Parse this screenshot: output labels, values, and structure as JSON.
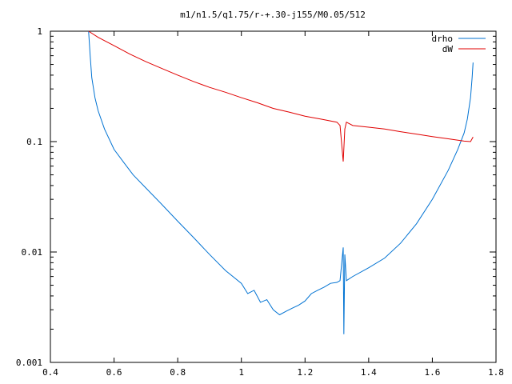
{
  "chart_data": {
    "type": "line",
    "title": "m1/n1.5/q1.75/r-+.30-j155/M0.05/512",
    "xlabel": "",
    "ylabel": "",
    "xlim": [
      0.4,
      1.8
    ],
    "ylim": [
      0.001,
      1
    ],
    "yscale": "log",
    "grid": false,
    "legend_position": "top-right",
    "x_ticks": [
      {
        "value": 0.4,
        "label": "0.4"
      },
      {
        "value": 0.6,
        "label": "0.6"
      },
      {
        "value": 0.8,
        "label": "0.8"
      },
      {
        "value": 1.0,
        "label": "1"
      },
      {
        "value": 1.2,
        "label": "1.2"
      },
      {
        "value": 1.4,
        "label": "1.4"
      },
      {
        "value": 1.6,
        "label": "1.6"
      },
      {
        "value": 1.8,
        "label": "1.8"
      }
    ],
    "y_ticks": [
      {
        "value": 1,
        "label": "1"
      },
      {
        "value": 0.1,
        "label": "0.1"
      },
      {
        "value": 0.01,
        "label": "0.01"
      },
      {
        "value": 0.001,
        "label": "0.001"
      }
    ],
    "series": [
      {
        "name": "drho",
        "color": "#0072d2",
        "points": [
          [
            0.52,
            1.0
          ],
          [
            0.525,
            0.6
          ],
          [
            0.53,
            0.38
          ],
          [
            0.54,
            0.25
          ],
          [
            0.55,
            0.19
          ],
          [
            0.57,
            0.13
          ],
          [
            0.6,
            0.085
          ],
          [
            0.63,
            0.065
          ],
          [
            0.66,
            0.05
          ],
          [
            0.7,
            0.038
          ],
          [
            0.75,
            0.027
          ],
          [
            0.8,
            0.019
          ],
          [
            0.85,
            0.0135
          ],
          [
            0.9,
            0.0095
          ],
          [
            0.95,
            0.0068
          ],
          [
            1.0,
            0.0052
          ],
          [
            1.02,
            0.0042
          ],
          [
            1.04,
            0.0045
          ],
          [
            1.06,
            0.0035
          ],
          [
            1.08,
            0.0037
          ],
          [
            1.1,
            0.003
          ],
          [
            1.12,
            0.0027
          ],
          [
            1.14,
            0.0029
          ],
          [
            1.16,
            0.0031
          ],
          [
            1.18,
            0.0033
          ],
          [
            1.2,
            0.0036
          ],
          [
            1.22,
            0.0042
          ],
          [
            1.24,
            0.0045
          ],
          [
            1.26,
            0.0048
          ],
          [
            1.28,
            0.0052
          ],
          [
            1.3,
            0.0053
          ],
          [
            1.31,
            0.0055
          ],
          [
            1.32,
            0.011
          ],
          [
            1.322,
            0.0018
          ],
          [
            1.325,
            0.0095
          ],
          [
            1.33,
            0.0055
          ],
          [
            1.35,
            0.006
          ],
          [
            1.4,
            0.0072
          ],
          [
            1.45,
            0.0088
          ],
          [
            1.5,
            0.012
          ],
          [
            1.55,
            0.018
          ],
          [
            1.6,
            0.03
          ],
          [
            1.65,
            0.055
          ],
          [
            1.68,
            0.085
          ],
          [
            1.7,
            0.12
          ],
          [
            1.71,
            0.16
          ],
          [
            1.72,
            0.25
          ],
          [
            1.725,
            0.38
          ],
          [
            1.728,
            0.52
          ]
        ]
      },
      {
        "name": "dW",
        "color": "#e00000",
        "points": [
          [
            0.52,
            1.0
          ],
          [
            0.55,
            0.88
          ],
          [
            0.6,
            0.74
          ],
          [
            0.65,
            0.62
          ],
          [
            0.7,
            0.53
          ],
          [
            0.75,
            0.46
          ],
          [
            0.8,
            0.4
          ],
          [
            0.85,
            0.35
          ],
          [
            0.9,
            0.31
          ],
          [
            0.95,
            0.28
          ],
          [
            1.0,
            0.25
          ],
          [
            1.05,
            0.225
          ],
          [
            1.1,
            0.2
          ],
          [
            1.15,
            0.185
          ],
          [
            1.2,
            0.17
          ],
          [
            1.25,
            0.16
          ],
          [
            1.3,
            0.15
          ],
          [
            1.31,
            0.14
          ],
          [
            1.32,
            0.066
          ],
          [
            1.325,
            0.13
          ],
          [
            1.33,
            0.15
          ],
          [
            1.35,
            0.14
          ],
          [
            1.4,
            0.135
          ],
          [
            1.45,
            0.13
          ],
          [
            1.5,
            0.123
          ],
          [
            1.55,
            0.117
          ],
          [
            1.6,
            0.111
          ],
          [
            1.65,
            0.106
          ],
          [
            1.7,
            0.101
          ],
          [
            1.72,
            0.1
          ],
          [
            1.728,
            0.11
          ]
        ]
      }
    ]
  }
}
